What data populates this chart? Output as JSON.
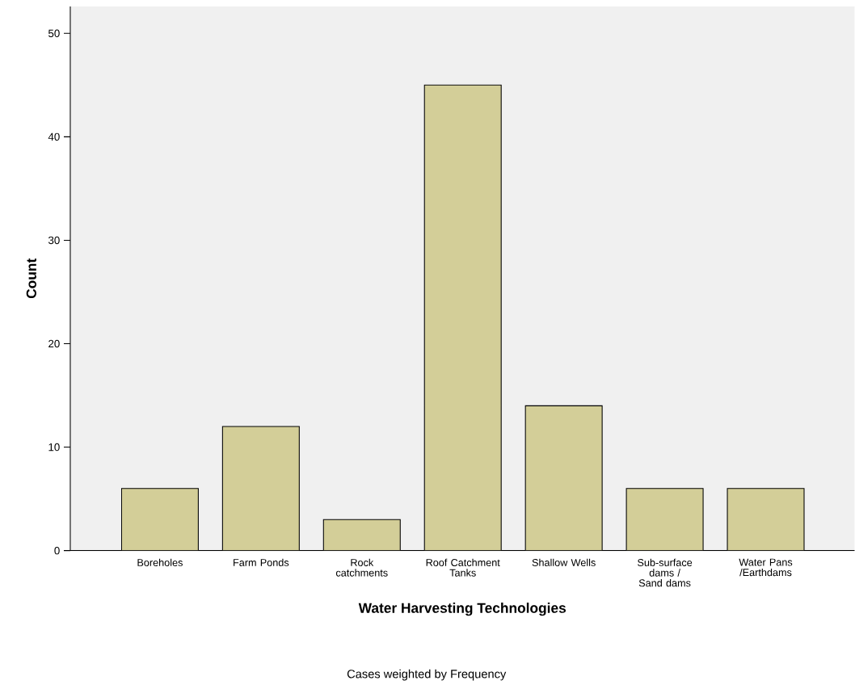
{
  "chart_data": {
    "type": "bar",
    "xlabel": "Water Harvesting Technologies",
    "ylabel": "Count",
    "categories": [
      "Boreholes",
      "Farm Ponds",
      "Rock catchments",
      "Roof Catchment Tanks",
      "Shallow Wells",
      "Sub-surface dams / Sand dams",
      "Water Pans /Earthdams"
    ],
    "values": [
      6,
      12,
      3,
      45,
      14,
      6,
      6
    ],
    "color": "#d3ce98",
    "ylim": [
      0,
      52.6
    ],
    "yticks": [
      0,
      10,
      20,
      30,
      40,
      50
    ],
    "annotations": [
      "Cases weighted by Frequency"
    ]
  }
}
